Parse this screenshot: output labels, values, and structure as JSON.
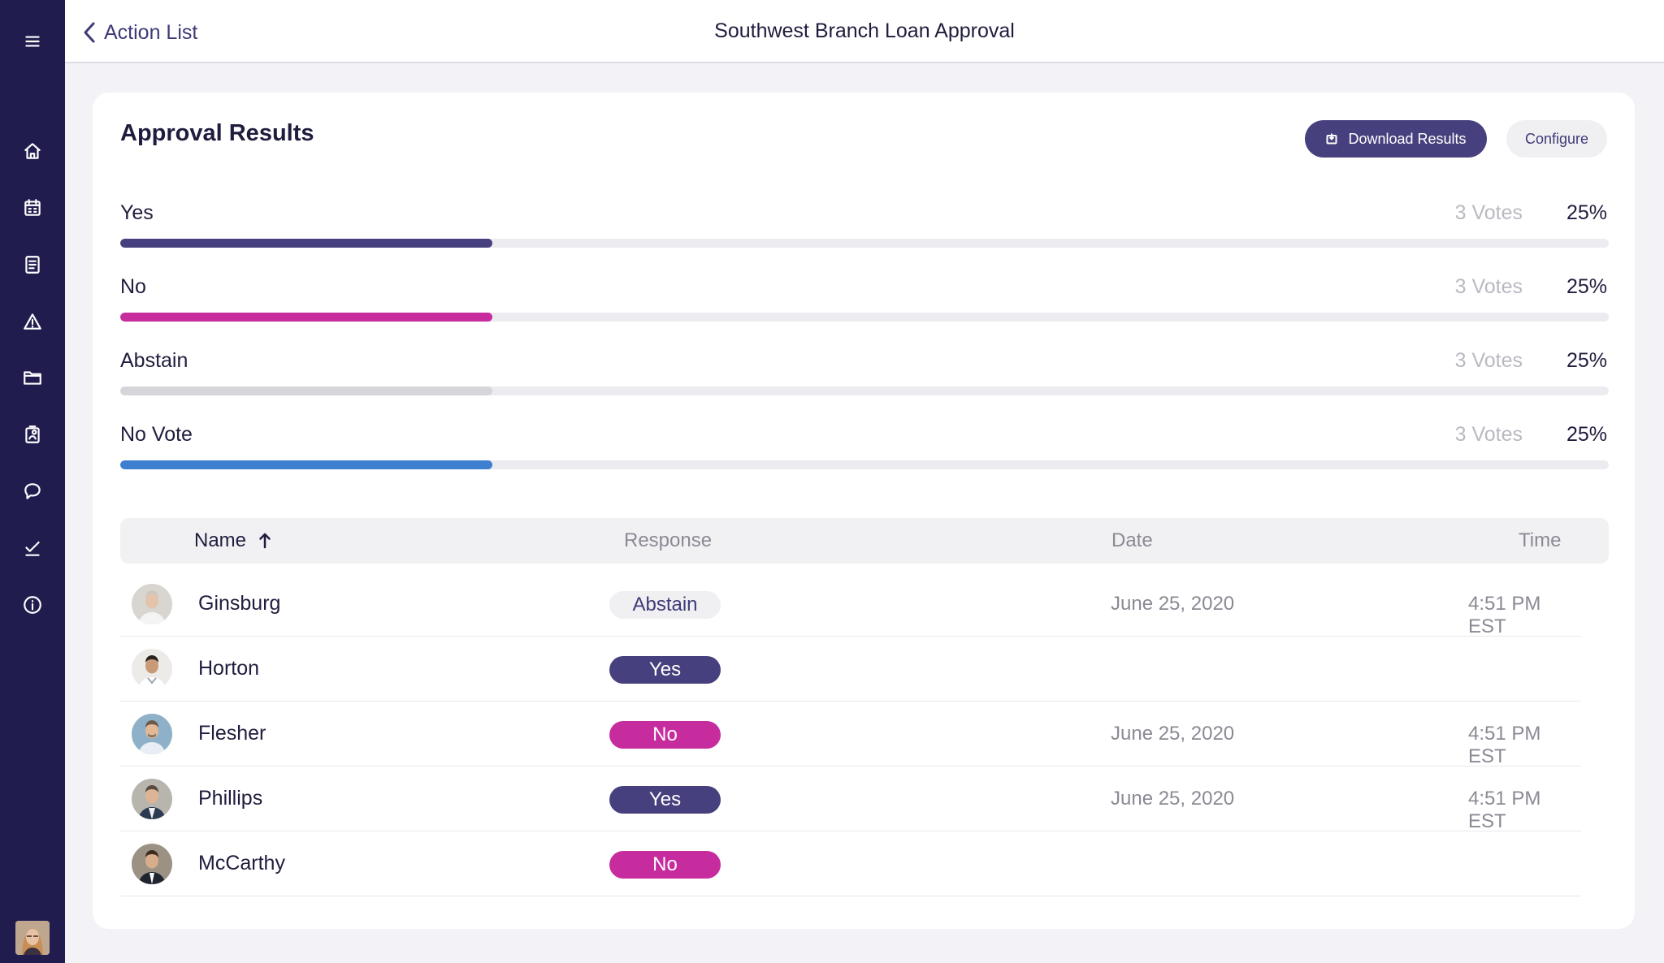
{
  "header": {
    "back_label": "Action List",
    "title": "Southwest Branch Loan Approval"
  },
  "sidebar": {
    "items": [
      {
        "icon": "menu-icon"
      },
      {
        "icon": "home-icon"
      },
      {
        "icon": "calendar-icon"
      },
      {
        "icon": "document-icon"
      },
      {
        "icon": "warning-icon"
      },
      {
        "icon": "folder-icon"
      },
      {
        "icon": "contacts-icon"
      },
      {
        "icon": "chat-icon"
      },
      {
        "icon": "checkmark-icon"
      },
      {
        "icon": "info-icon"
      }
    ]
  },
  "card": {
    "title": "Approval Results",
    "download_label": "Download Results",
    "configure_label": "Configure"
  },
  "results": [
    {
      "label": "Yes",
      "votes": "3 Votes",
      "percent": "25%",
      "fraction": 0.25,
      "color": "#47407e"
    },
    {
      "label": "No",
      "votes": "3 Votes",
      "percent": "25%",
      "fraction": 0.25,
      "color": "#c72c9f"
    },
    {
      "label": "Abstain",
      "votes": "3 Votes",
      "percent": "25%",
      "fraction": 0.25,
      "color": "#d6d6da"
    },
    {
      "label": "No Vote",
      "votes": "3 Votes",
      "percent": "25%",
      "fraction": 0.25,
      "color": "#3f7fcf"
    }
  ],
  "table": {
    "columns": {
      "name": "Name",
      "response": "Response",
      "date": "Date",
      "time": "Time"
    },
    "rows": [
      {
        "name": "Ginsburg",
        "response": "Abstain",
        "date": "June 25, 2020",
        "time": "4:51 PM EST"
      },
      {
        "name": "Horton",
        "response": "Yes",
        "date": "",
        "time": ""
      },
      {
        "name": "Flesher",
        "response": "No",
        "date": "June 25, 2020",
        "time": "4:51 PM EST"
      },
      {
        "name": "Phillips",
        "response": "Yes",
        "date": "June 25, 2020",
        "time": "4:51 PM EST"
      },
      {
        "name": "McCarthy",
        "response": "No",
        "date": "",
        "time": ""
      }
    ]
  }
}
